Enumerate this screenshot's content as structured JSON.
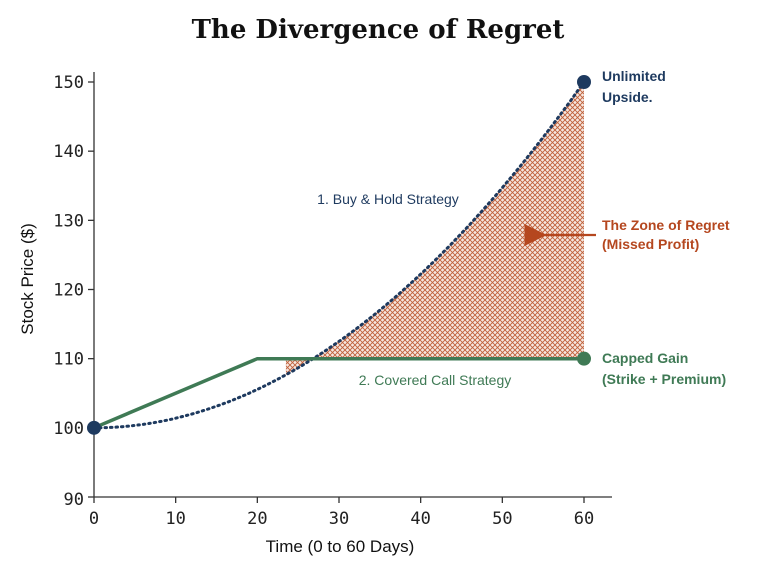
{
  "chart_data": {
    "type": "line",
    "title": "The Divergence of Regret",
    "xlabel": "Time (0 to 60 Days)",
    "ylabel": "Stock Price ($)",
    "xlim": [
      0,
      60
    ],
    "ylim": [
      90,
      152
    ],
    "xticks": [
      0,
      10,
      20,
      30,
      40,
      50,
      60
    ],
    "yticks": [
      90,
      100,
      110,
      120,
      130,
      140,
      150
    ],
    "grid": false,
    "series": [
      {
        "name": "1. Buy & Hold Strategy",
        "style": "dotted",
        "color": "#1e3a5f",
        "x": [
          0,
          5,
          10,
          15,
          20,
          25,
          30,
          35,
          40,
          45,
          50,
          55,
          60
        ],
        "y": [
          100,
          100.35,
          101.39,
          103.13,
          105.56,
          108.68,
          112.5,
          117.01,
          122.22,
          128.13,
          134.72,
          142.01,
          150
        ]
      },
      {
        "name": "2. Covered Call Strategy",
        "style": "solid",
        "color": "#3f7a55",
        "x": [
          0,
          20,
          60
        ],
        "y": [
          100,
          110,
          110
        ]
      }
    ],
    "points": [
      {
        "x": 0,
        "y": 100,
        "color": "#1e3a5f"
      },
      {
        "x": 60,
        "y": 150,
        "color": "#1e3a5f"
      },
      {
        "x": 60,
        "y": 110,
        "color": "#3f7a55"
      }
    ],
    "annotations": {
      "upside": [
        "Unlimited",
        "Upside."
      ],
      "capped": [
        "Capped Gain",
        "(Strike + Premium)"
      ],
      "regret": [
        "The Zone of Regret",
        "(Missed Profit)"
      ]
    },
    "shaded_region": {
      "label": "The Zone of Regret",
      "between": [
        "1. Buy & Hold Strategy",
        "2. Covered Call Strategy"
      ],
      "x_range": [
        23.5,
        60
      ],
      "color": "#c0603a"
    }
  },
  "colors": {
    "navy": "#1e3a5f",
    "green": "#3f7a55",
    "rust": "#b5471f",
    "axis": "#333333"
  }
}
